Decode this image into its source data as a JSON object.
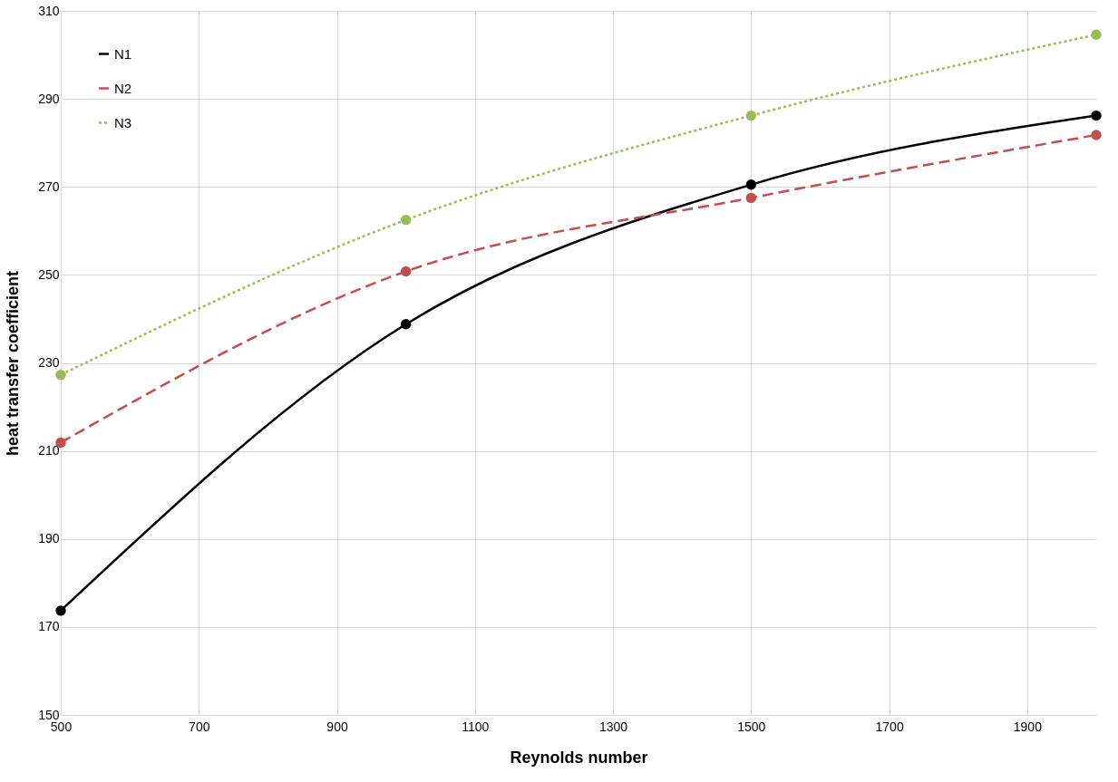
{
  "chart_data": {
    "type": "line",
    "xlabel": "Reynolds number",
    "ylabel": "heat transfer coefficient",
    "x": [
      500,
      1000,
      1500,
      2000
    ],
    "series": [
      {
        "name": "N1",
        "color": "#000000",
        "line_style": "solid",
        "values": [
          173.7,
          238.8,
          270.5,
          286.2
        ]
      },
      {
        "name": "N2",
        "color": "#c0504d",
        "line_style": "dashed",
        "values": [
          211.9,
          250.8,
          267.5,
          281.8
        ]
      },
      {
        "name": "N3",
        "color": "#9bbb59",
        "line_style": "dotted",
        "values": [
          227.3,
          262.5,
          286.2,
          304.6
        ]
      }
    ],
    "xlim": [
      500,
      2000
    ],
    "xticks": [
      500,
      700,
      900,
      1100,
      1300,
      1500,
      1700,
      1900
    ],
    "ylim": [
      150,
      310
    ],
    "yticks": [
      150,
      170,
      190,
      210,
      230,
      250,
      270,
      290,
      310
    ],
    "grid": true,
    "legend": "top left",
    "marker": "circle"
  }
}
